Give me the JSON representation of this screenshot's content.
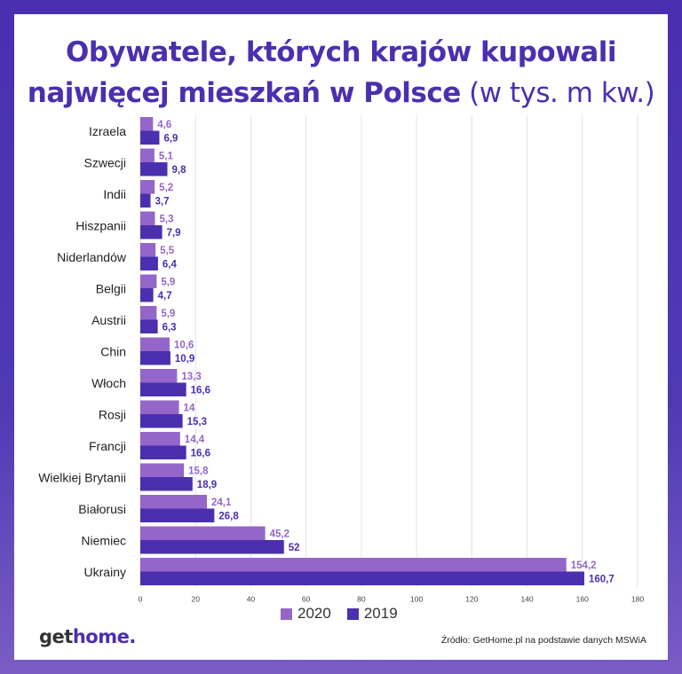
{
  "page": {
    "title_line1": "Obywatele, których krajów kupowali",
    "title_line2_bold": "najwięcej mieszkań w Polsce",
    "title_line2_unit": " (w tys. m kw.)",
    "logo_get": "get",
    "logo_home": "home.",
    "source": "Źródło: GetHome.pl na podstawie danych MSWiA",
    "background_color": "#4a2fb0"
  },
  "chart_data": {
    "type": "bar",
    "orientation": "horizontal",
    "categories": [
      "Izraela",
      "Szwecji",
      "Indii",
      "Hiszpanii",
      "Niderlandów",
      "Belgii",
      "Austrii",
      "Chin",
      "Włoch",
      "Rosji",
      "Francji",
      "Wielkiej Brytanii",
      "Białorusi",
      "Niemiec",
      "Ukrainy"
    ],
    "series": [
      {
        "name": "2020",
        "color": "#9466c9",
        "values": [
          4.6,
          5.1,
          5.2,
          5.3,
          5.5,
          5.9,
          5.9,
          10.6,
          13.3,
          14,
          14.4,
          15.8,
          24.1,
          45.2,
          154.2
        ],
        "labels": [
          "4,6",
          "5,1",
          "5,2",
          "5,3",
          "5,5",
          "5,9",
          "5,9",
          "10,6",
          "13,3",
          "14",
          "14,4",
          "15,8",
          "24,1",
          "45,2",
          "154,2"
        ]
      },
      {
        "name": "2019",
        "color": "#4b2fae",
        "values": [
          6.9,
          9.8,
          3.7,
          7.9,
          6.4,
          4.7,
          6.3,
          10.9,
          16.6,
          15.3,
          16.6,
          18.9,
          26.8,
          52,
          160.7
        ],
        "labels": [
          "6,9",
          "9,8",
          "3,7",
          "7,9",
          "6,4",
          "4,7",
          "6,3",
          "10,9",
          "16,6",
          "15,3",
          "16,6",
          "18,9",
          "26,8",
          "52",
          "160,7"
        ]
      }
    ],
    "xlim": [
      0,
      180
    ],
    "xticks": [
      0,
      20,
      40,
      60,
      80,
      100,
      120,
      140,
      160,
      180
    ],
    "grid": true,
    "legend": "bottom-center"
  }
}
